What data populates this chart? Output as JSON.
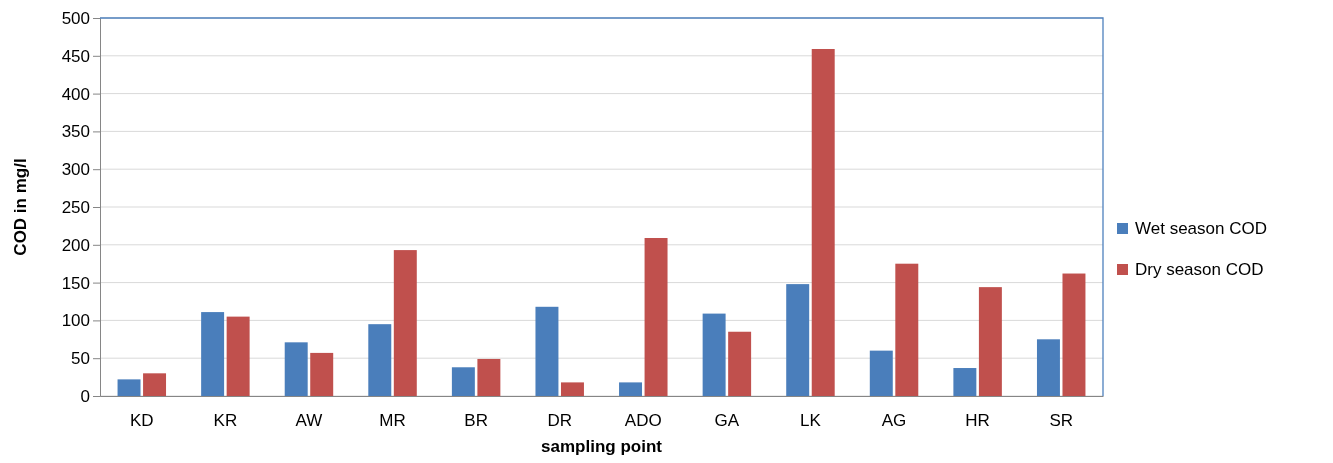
{
  "chart_data": {
    "type": "bar",
    "xlabel": "sampling point",
    "ylabel": "COD in mg/l",
    "categories": [
      "KD",
      "KR",
      "AW",
      "MR",
      "BR",
      "DR",
      "ADO",
      "GA",
      "LK",
      "AG",
      "HR",
      "SR"
    ],
    "series": [
      {
        "name": "Wet season COD",
        "color": "#4a7ebb",
        "values": [
          22,
          111,
          71,
          95,
          38,
          118,
          18,
          109,
          148,
          60,
          37,
          75
        ]
      },
      {
        "name": "Dry season COD",
        "color": "#c0504d",
        "values": [
          30,
          105,
          57,
          193,
          49,
          18,
          209,
          85,
          459,
          175,
          144,
          162
        ]
      }
    ],
    "ylim": [
      0,
      500
    ],
    "yticks": [
      0,
      50,
      100,
      150,
      200,
      250,
      300,
      350,
      400,
      450,
      500
    ],
    "grid": "y",
    "legend": "right"
  }
}
